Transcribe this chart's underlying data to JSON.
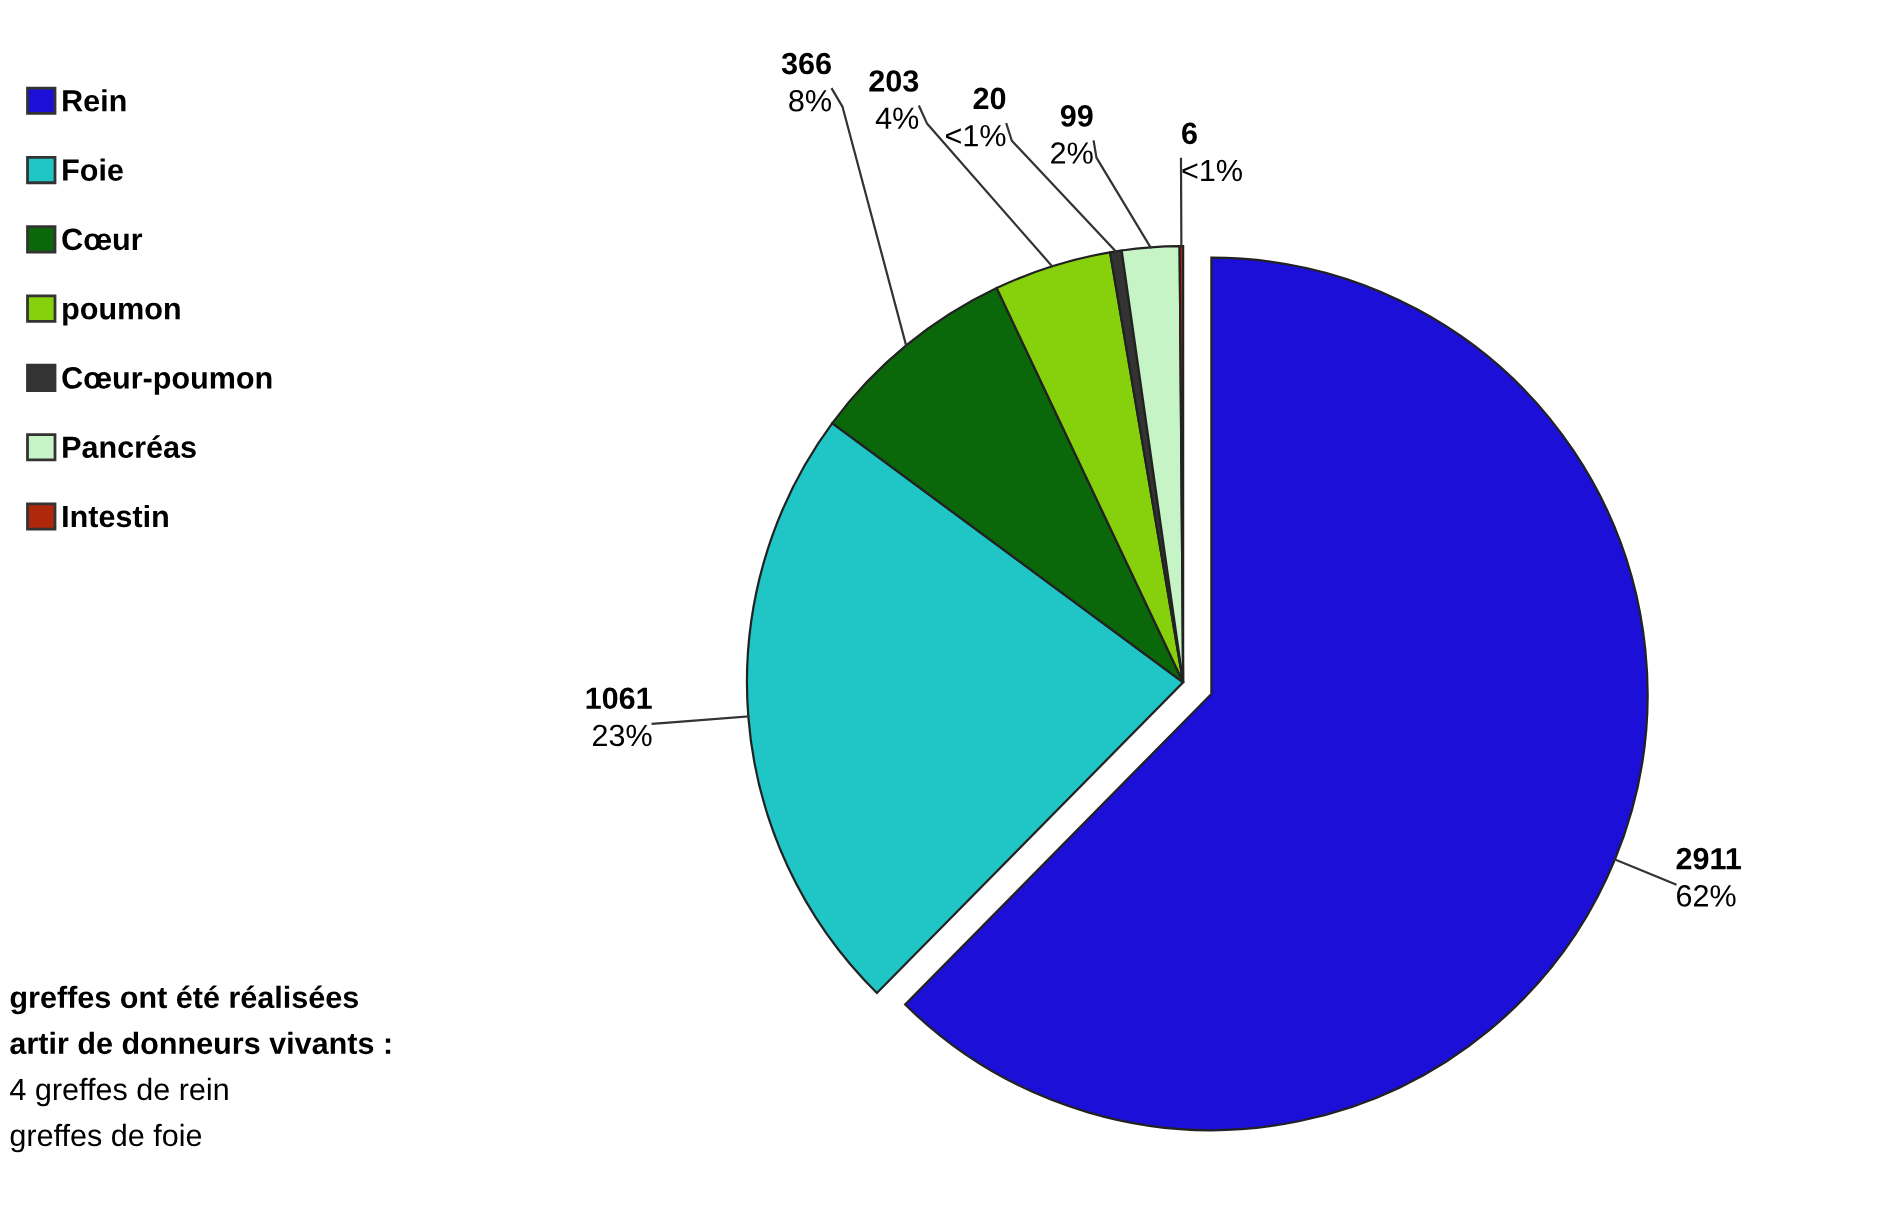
{
  "chart_data": {
    "type": "pie",
    "categories": [
      "Rein",
      "Foie",
      "Cœur",
      "poumon",
      "Cœur-poumon",
      "Pancréas",
      "Intestin"
    ],
    "values": [
      2911,
      1061,
      366,
      203,
      20,
      99,
      6
    ],
    "colors": [
      "#1c10d8",
      "#20c6c6",
      "#0a680a",
      "#86d10c",
      "#333333",
      "#c6f4c6",
      "#b0280c"
    ],
    "value_labels": [
      "2911\n62%",
      "1061\n23%",
      "366\n8%",
      "203\n4%",
      "20\n<1%",
      "99\n2%",
      "6\n<1%"
    ],
    "legend": "top left",
    "annotations": [
      "greffes ont été réalisées",
      "artir de donneurs vivants :",
      "4 greffes de rein",
      "greffes de foie"
    ]
  }
}
